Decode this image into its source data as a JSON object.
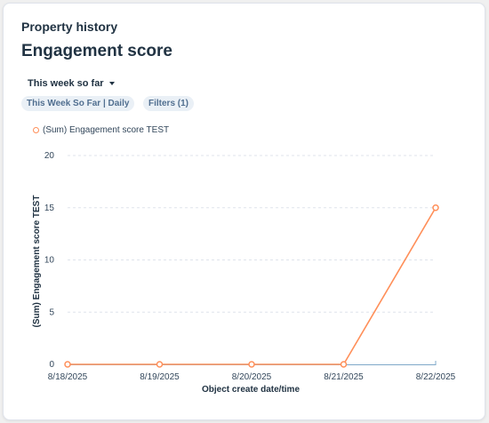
{
  "header": {
    "eyebrow": "Property history",
    "title": "Engagement score"
  },
  "controls": {
    "date_range_label": "This week so far",
    "range_tag": "This Week So Far | Daily",
    "filters_tag": "Filters (1)"
  },
  "colors": {
    "series": "#ff8f59",
    "baseline": "#7fa8c9",
    "grid": "#dfe3eb",
    "text": "#33475b"
  },
  "chart_data": {
    "type": "line",
    "xlabel": "Object create date/time",
    "ylabel": "(Sum) Engagement score TEST",
    "categories": [
      "8/18/2025",
      "8/19/2025",
      "8/20/2025",
      "8/21/2025",
      "8/22/2025"
    ],
    "yticks": [
      "0",
      "5",
      "10",
      "15",
      "20"
    ],
    "ylim": [
      0,
      20
    ],
    "grid": true,
    "legend_position": "top-left",
    "series": [
      {
        "name": "(Sum) Engagement score TEST",
        "values": [
          0,
          0,
          0,
          0,
          15
        ]
      }
    ]
  }
}
